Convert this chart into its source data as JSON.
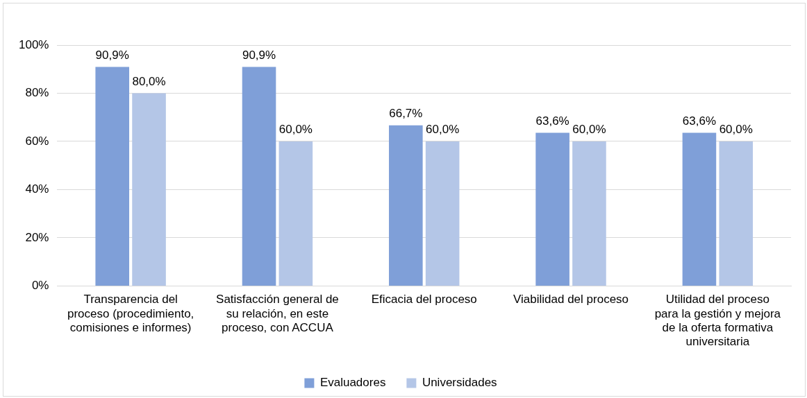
{
  "chart_data": {
    "type": "bar",
    "categories": [
      "Transparencia del proceso (procedimiento, comisiones e informes)",
      "Satisfacción general de su relación, en este proceso, con ACCUA",
      "Eficacia del proceso",
      "Viabilidad del proceso",
      "Utilidad del proceso para la gestión y mejora de la oferta formativa universitaria"
    ],
    "series": [
      {
        "name": "Evaluadores",
        "color": "#7f9fd8",
        "values": [
          90.9,
          90.9,
          66.7,
          63.6,
          63.6
        ],
        "value_labels": [
          "90,9%",
          "90,9%",
          "66,7%",
          "63,6%",
          "63,6%"
        ]
      },
      {
        "name": "Universidades",
        "color": "#b4c6e7",
        "values": [
          80.0,
          60.0,
          60.0,
          60.0,
          60.0
        ],
        "value_labels": [
          "80,0%",
          "60,0%",
          "60,0%",
          "60,0%",
          "60,0%"
        ]
      }
    ],
    "ylim": [
      0,
      100
    ],
    "yticks": [
      {
        "value": 0,
        "label": "0%"
      },
      {
        "value": 20,
        "label": "20%"
      },
      {
        "value": 40,
        "label": "40%"
      },
      {
        "value": 60,
        "label": "60%"
      },
      {
        "value": 80,
        "label": "80%"
      },
      {
        "value": 100,
        "label": "100%"
      }
    ],
    "grid": "y",
    "legend": "bottom"
  }
}
